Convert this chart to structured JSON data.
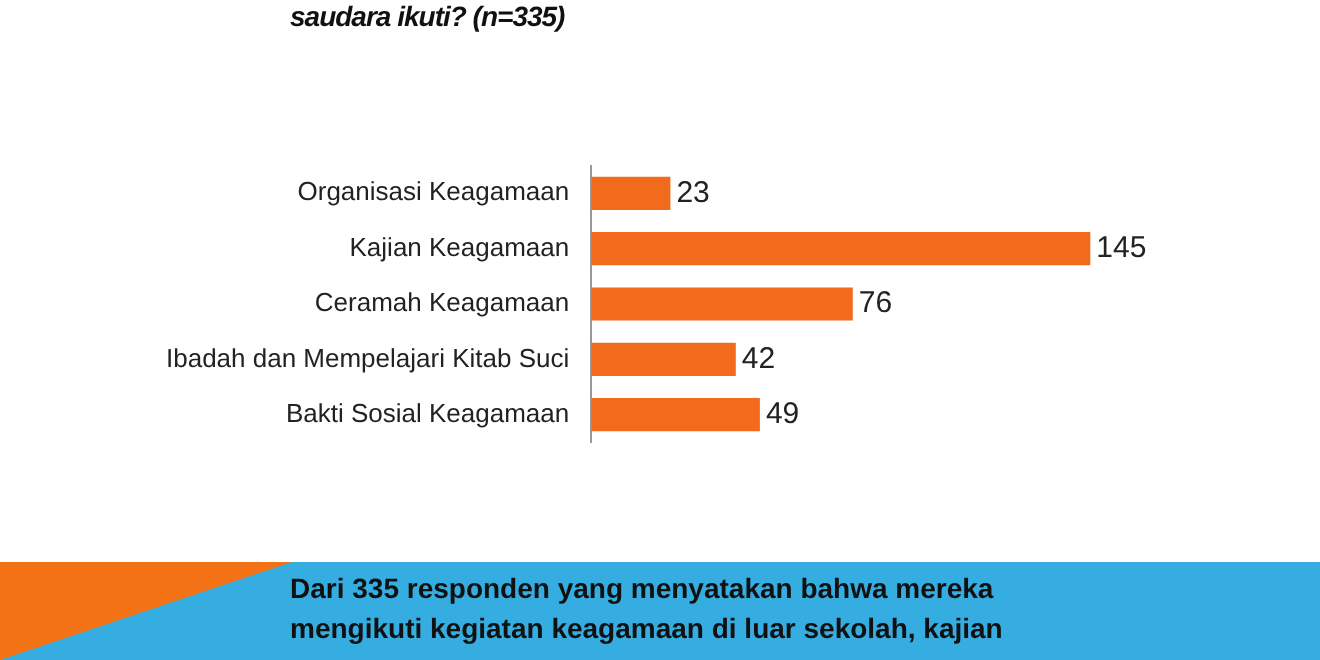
{
  "chart_data": {
    "type": "bar",
    "orientation": "horizontal",
    "title": "saudara ikuti? (n=335)",
    "categories": [
      "Organisasi Keagamaan",
      "Kajian Keagamaan",
      "Ceramah Keagamaan",
      "Ibadah dan Mempelajari Kitab Suci",
      "Bakti Sosial Keagamaan"
    ],
    "values": [
      23,
      145,
      76,
      42,
      49
    ],
    "color": "#f26b1d",
    "data_labels": true,
    "legend": false,
    "annotations": [
      "Dari 335 responden yang menyatakan bahwa mereka mengikuti kegiatan keagamaan di luar sekolah, kajian"
    ]
  }
}
